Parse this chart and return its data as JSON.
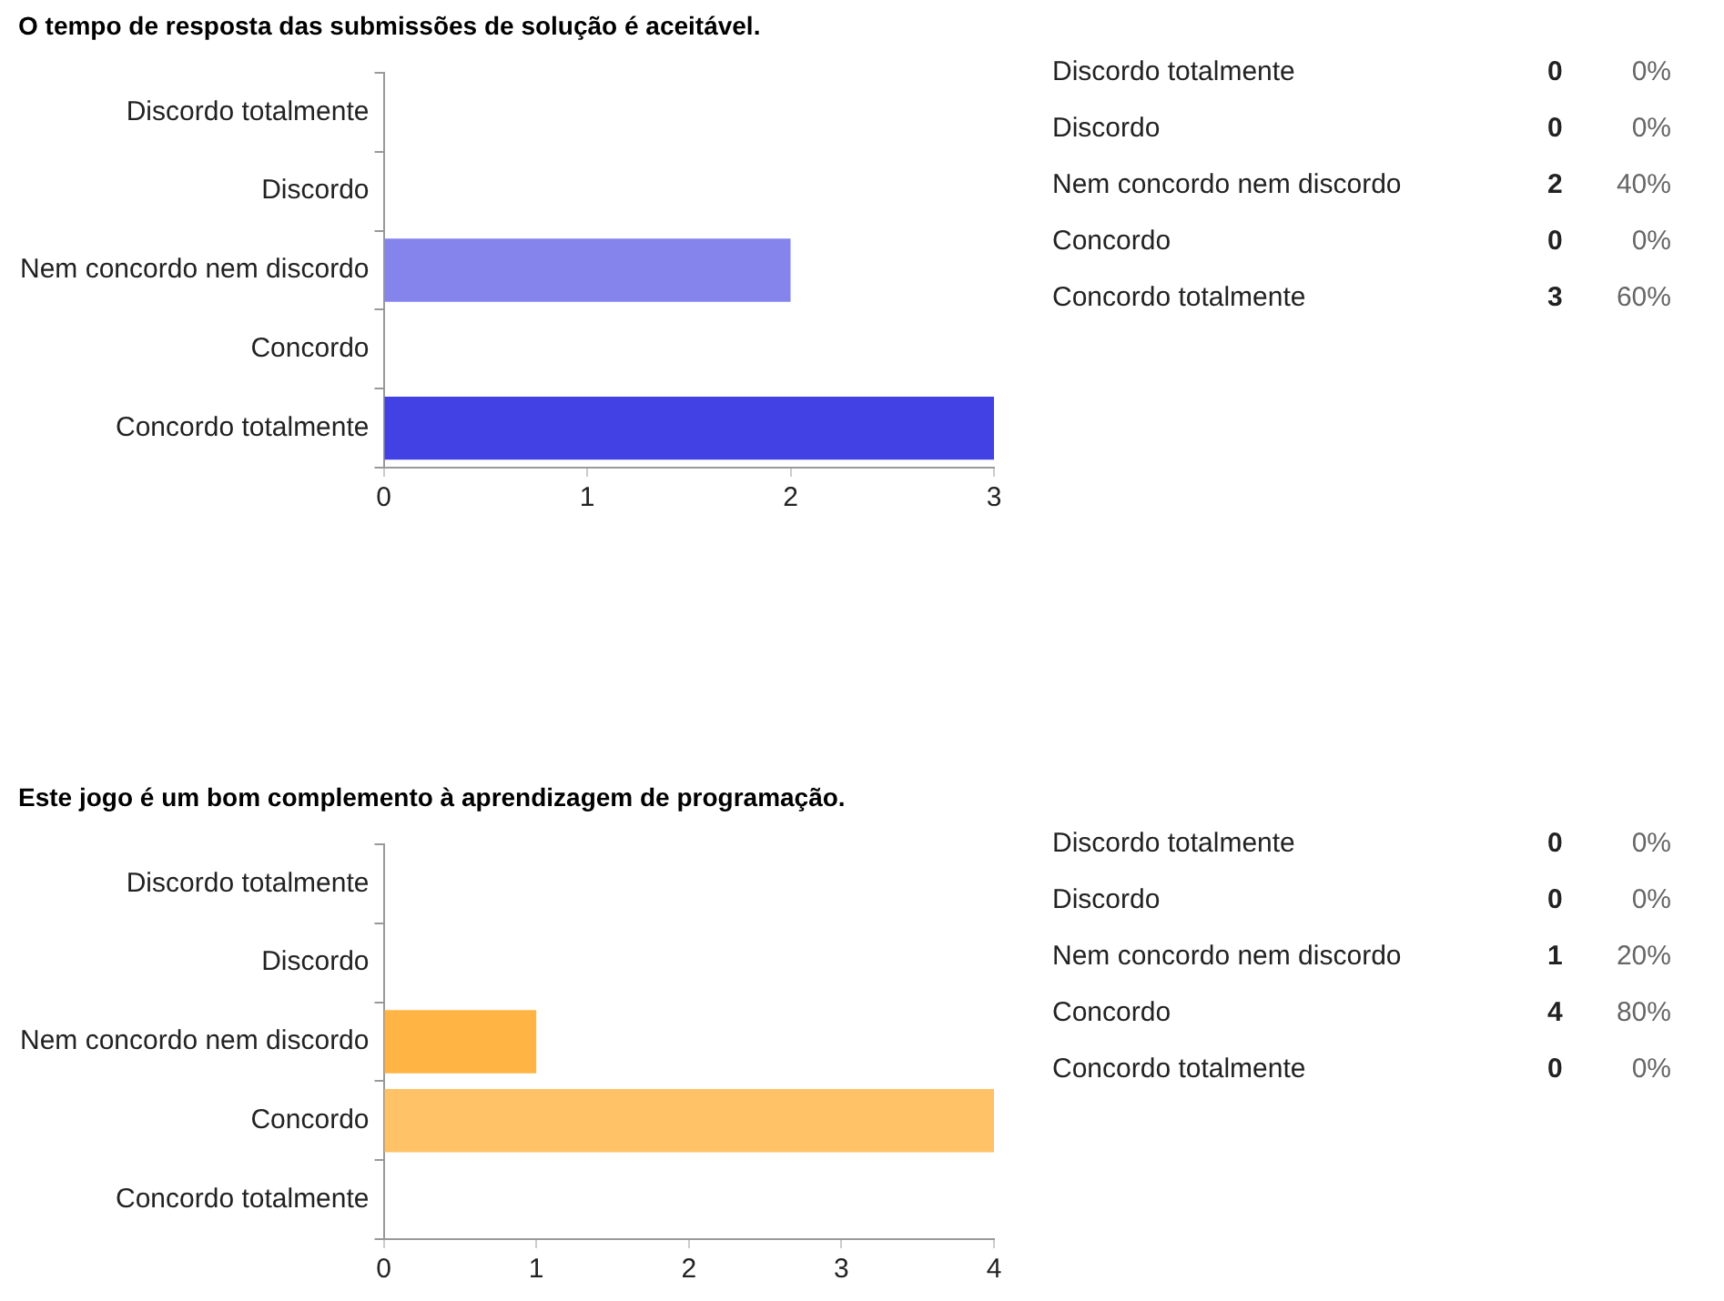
{
  "chart_data": [
    {
      "type": "bar",
      "orientation": "horizontal",
      "title": "O tempo de resposta das submissões de solução é aceitável.",
      "categories": [
        "Discordo totalmente",
        "Discordo",
        "Nem concordo nem discordo",
        "Concordo",
        "Concordo totalmente"
      ],
      "values": [
        0,
        0,
        2,
        0,
        3
      ],
      "colors": [
        "#c6c6f6",
        "#a5a5f1",
        "#8484ec",
        "#6262e8",
        "#4141e4"
      ],
      "xlim": [
        0,
        3
      ],
      "xticks": [
        0,
        1,
        2,
        3
      ],
      "grid": false
    },
    {
      "type": "other",
      "annotations": [
        "Discordo totalmente",
        "0",
        "0%",
        "Discordo",
        "0",
        "0%",
        "Nem concordo nem discordo",
        "2",
        "40%",
        "Concordo",
        "0",
        "0%",
        "Concordo totalmente",
        "3",
        "60%"
      ]
    },
    {
      "type": "bar",
      "orientation": "horizontal",
      "title": "Este jogo é um bom complemento à aprendizagem de programação.",
      "categories": [
        "Discordo totalmente",
        "Discordo",
        "Nem concordo nem discordo",
        "Concordo",
        "Concordo totalmente"
      ],
      "values": [
        0,
        0,
        1,
        4,
        0
      ],
      "colors": [
        "#ffe0b3",
        "#ffd18c",
        "#ffb443",
        "#ffc266",
        "#ff9f10"
      ],
      "xlim": [
        0,
        4
      ],
      "xticks": [
        0,
        1,
        2,
        3,
        4
      ],
      "grid": false
    },
    {
      "type": "other",
      "annotations": [
        "Discordo totalmente",
        "0",
        "0%",
        "Discordo",
        "0",
        "0%",
        "Nem concordo nem discordo",
        "1",
        "20%",
        "Concordo",
        "4",
        "80%",
        "Concordo totalmente",
        "0",
        "0%"
      ]
    }
  ]
}
